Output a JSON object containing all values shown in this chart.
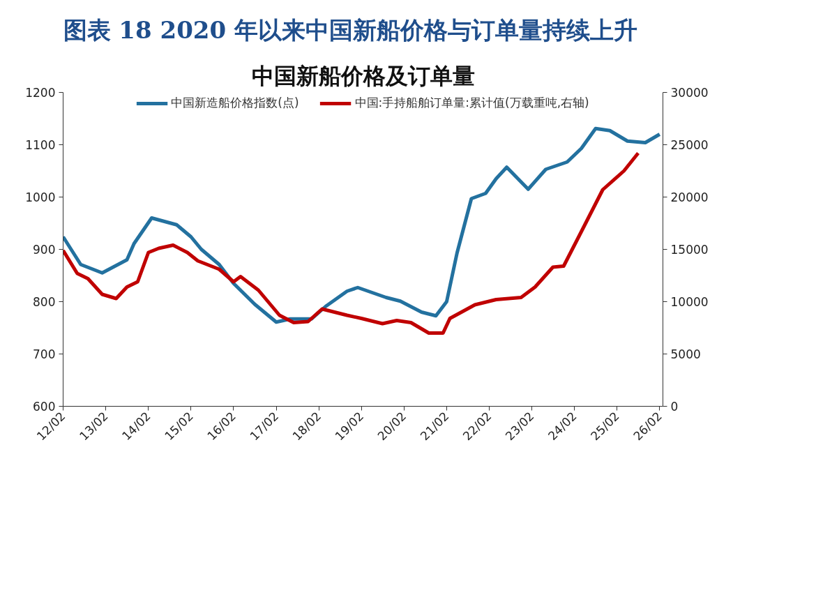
{
  "chart_data": {
    "type": "line",
    "title": "图表 18   2020 年以来中国新船价格与订单量持续上升",
    "subtitle": "中国新船价格及订单量",
    "xlim": [
      "2012-02",
      "2026-03"
    ],
    "xticks": [
      {
        "value": "2012-02",
        "label": "12/02"
      },
      {
        "value": "2013-02",
        "label": "13/02"
      },
      {
        "value": "2014-02",
        "label": "14/02"
      },
      {
        "value": "2015-02",
        "label": "15/02"
      },
      {
        "value": "2016-02",
        "label": "16/02"
      },
      {
        "value": "2017-02",
        "label": "17/02"
      },
      {
        "value": "2018-02",
        "label": "18/02"
      },
      {
        "value": "2019-02",
        "label": "19/02"
      },
      {
        "value": "2020-02",
        "label": "20/02"
      },
      {
        "value": "2021-02",
        "label": "21/02"
      },
      {
        "value": "2022-02",
        "label": "22/02"
      },
      {
        "value": "2023-02",
        "label": "23/02"
      },
      {
        "value": "2024-02",
        "label": "24/02"
      },
      {
        "value": "2025-02",
        "label": "25/02"
      },
      {
        "value": "2026-02",
        "label": "26/02"
      }
    ],
    "ylim": [
      600,
      1200
    ],
    "yticks": [
      600,
      700,
      800,
      900,
      1000,
      1100,
      1200
    ],
    "y2lim": [
      0,
      30000
    ],
    "y2ticks": [
      0,
      5000,
      10000,
      15000,
      20000,
      25000,
      30000
    ],
    "grid": false,
    "legend": "top",
    "marker": "none",
    "line_style": "solid",
    "series": [
      {
        "name": "中国新造船价格指数(点)",
        "color": "#23719f",
        "x": [
          "2012-02",
          "2012-07",
          "2013-01",
          "2013-08",
          "2013-10",
          "2014-03",
          "2014-10",
          "2015-02",
          "2015-05",
          "2015-10",
          "2016-02",
          "2016-08",
          "2017-02",
          "2017-06",
          "2017-12",
          "2018-04",
          "2018-10",
          "2019-01",
          "2019-09",
          "2020-01",
          "2020-07",
          "2020-11",
          "2021-02",
          "2021-05",
          "2021-09",
          "2022-01",
          "2022-04",
          "2022-07",
          "2023-01",
          "2023-06",
          "2023-12",
          "2024-04",
          "2024-08",
          "2024-12",
          "2025-05",
          "2025-10",
          "2026-02"
        ],
        "values": [
          924,
          871,
          855,
          880,
          911,
          960,
          947,
          924,
          900,
          871,
          835,
          795,
          761,
          767,
          767,
          791,
          820,
          827,
          808,
          801,
          780,
          773,
          800,
          893,
          997,
          1007,
          1035,
          1057,
          1015,
          1053,
          1067,
          1093,
          1131,
          1127,
          1107,
          1104,
          1120
        ]
      },
      {
        "name": "中国:手持船舶订单量:累计值(万载重吨,右轴)",
        "color": "#c00000",
        "axis": "y2",
        "x": [
          "2012-02",
          "2012-06",
          "2012-09",
          "2013-01",
          "2013-05",
          "2013-08",
          "2013-11",
          "2014-02",
          "2014-05",
          "2014-09",
          "2015-01",
          "2015-04",
          "2015-10",
          "2016-02",
          "2016-04",
          "2016-09",
          "2017-03",
          "2017-07",
          "2017-11",
          "2018-03",
          "2018-10",
          "2019-02",
          "2019-08",
          "2019-12",
          "2020-04",
          "2020-09",
          "2021-01",
          "2021-03",
          "2021-10",
          "2022-04",
          "2022-11",
          "2023-03",
          "2023-08",
          "2023-11",
          "2024-04",
          "2024-10",
          "2025-04",
          "2025-08"
        ],
        "values": [
          14900,
          12700,
          12200,
          10700,
          10300,
          11400,
          11900,
          14700,
          15100,
          15400,
          14700,
          13900,
          13100,
          11900,
          12400,
          11100,
          8700,
          8000,
          8100,
          9300,
          8700,
          8400,
          7900,
          8200,
          8000,
          7000,
          7000,
          8400,
          9700,
          10200,
          10400,
          11400,
          13300,
          13400,
          16700,
          20700,
          22500,
          24200
        ]
      }
    ]
  }
}
